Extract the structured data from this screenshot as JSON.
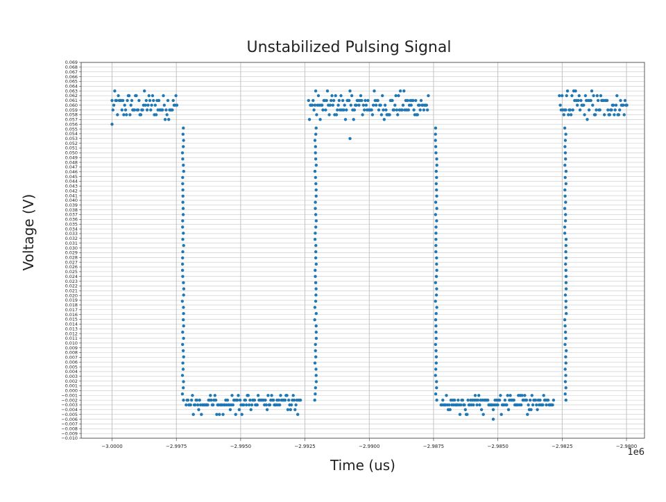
{
  "chart_data": {
    "type": "scatter",
    "title": "Unstabilized Pulsing Signal",
    "xlabel": "Time (us)",
    "ylabel": "Voltage (V)",
    "x_offset_label": "1e6",
    "xlim": [
      -3.0012,
      -2.9793
    ],
    "ylim": [
      -0.01,
      0.069
    ],
    "grid": true,
    "x_ticks": [
      -3.0,
      -2.9975,
      -2.995,
      -2.9925,
      -2.99,
      -2.9875,
      -2.985,
      -2.9825,
      -2.98
    ],
    "x_tick_labels": [
      "−3.0000",
      "−2.9975",
      "−2.9950",
      "−2.9925",
      "−2.9900",
      "−2.9875",
      "−2.9850",
      "−2.9825",
      "−2.9800"
    ],
    "y_ticks_start": -0.01,
    "y_ticks_stop": 0.069,
    "y_ticks_step": 0.001,
    "series": [
      {
        "color": "#1f77b4",
        "high_segments": [
          [
            -3.0,
            -2.99745
          ],
          [
            -2.99236,
            -2.98767
          ],
          [
            -2.98261,
            -2.97998
          ]
        ],
        "low_segments": [
          [
            -2.99712,
            -2.99267
          ],
          [
            -2.98721,
            -2.98283
          ]
        ],
        "high_levels": [
          0.057,
          0.058,
          0.059,
          0.06,
          0.061,
          0.062,
          0.063
        ],
        "low_levels": [
          -0.001,
          -0.002,
          -0.003,
          -0.004,
          -0.005
        ],
        "edges": [
          {
            "x": -2.99724,
            "from": 0.056,
            "to": -0.002
          },
          {
            "x": -2.99209,
            "from": -0.002,
            "to": 0.056
          },
          {
            "x": -2.9874,
            "from": 0.056,
            "to": -0.002
          },
          {
            "x": -2.98237,
            "from": -0.002,
            "to": 0.056
          }
        ],
        "outliers": [
          [
            -2.99075,
            0.053
          ],
          [
            -2.98518,
            -0.006
          ],
          [
            -3.0,
            0.056
          ]
        ]
      }
    ]
  }
}
